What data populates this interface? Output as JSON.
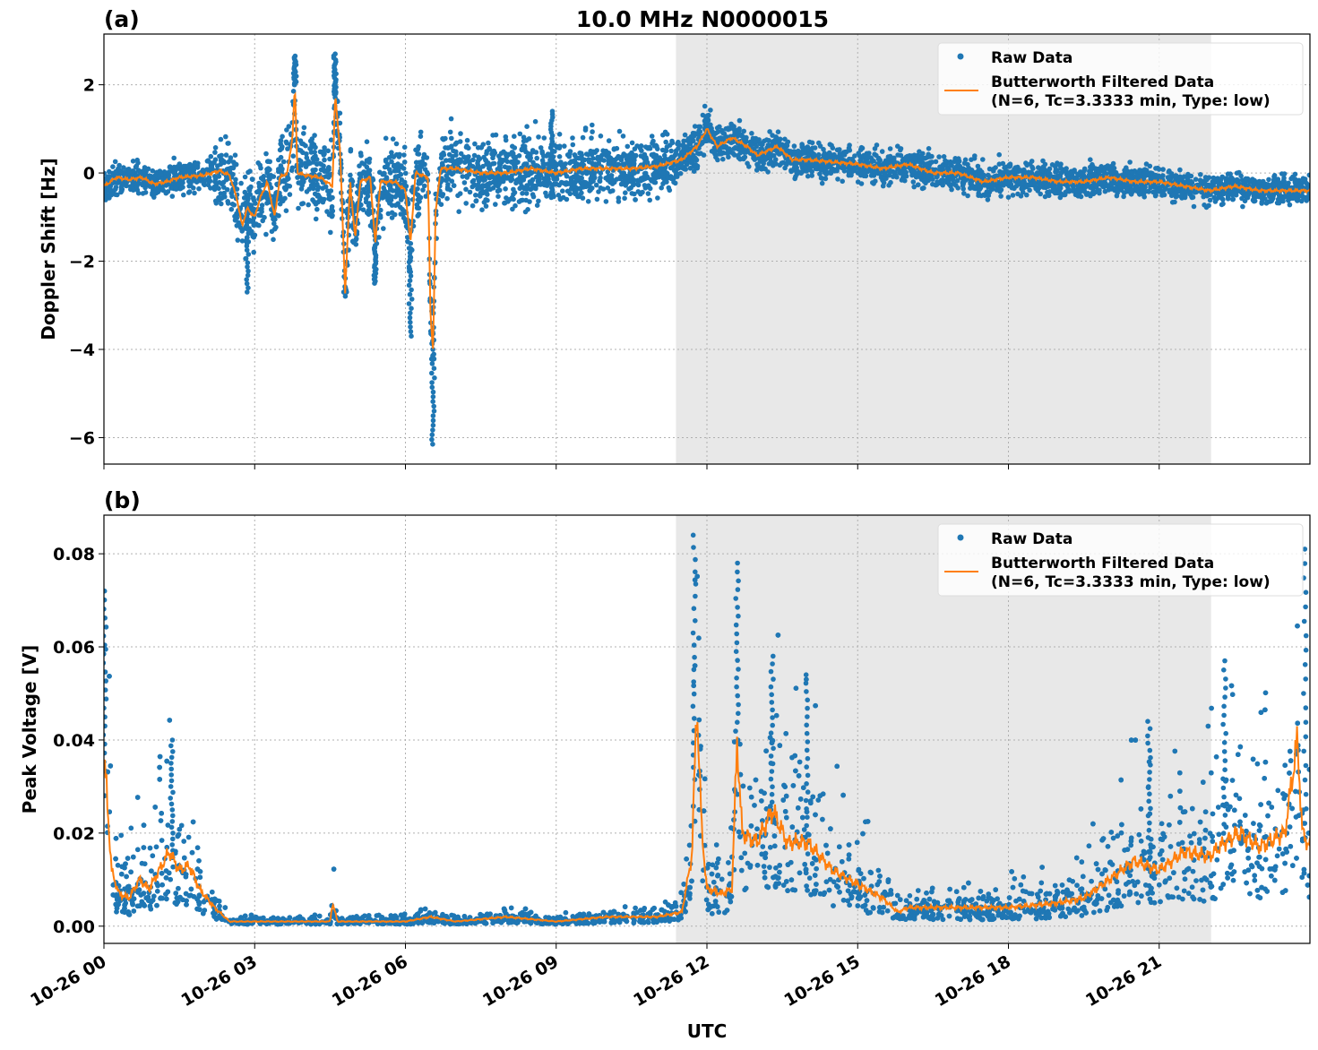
{
  "title": "10.0 MHz N0000015",
  "xlabel": "UTC",
  "x_tick_labels": [
    "10-26 00",
    "10-26 03",
    "10-26 06",
    "10-26 09",
    "10-26 12",
    "10-26 15",
    "10-26 18",
    "10-26 21"
  ],
  "xlim": [
    "00:00",
    "24:00"
  ],
  "shaded_span": [
    "11:23",
    "22:02"
  ],
  "colors": {
    "raw": "#1f77b4",
    "filtered": "#ff7f0e",
    "shade": "#e8e8e8",
    "grid": "#b0b0b0"
  },
  "legend": {
    "placement": "top-right",
    "raw_label": "Raw Data",
    "filtered_label_1": "Butterworth Filtered Data",
    "filtered_label_2": "(N=6, Tc=3.3333 min, Type: low)"
  },
  "chart_data": [
    {
      "type": "scatter+line",
      "panel_label": "(a)",
      "ylabel": "Doppler Shift [Hz]",
      "ylim": [
        -6.6,
        3.15
      ],
      "y_ticks": [
        2,
        0,
        -2,
        -4,
        -6
      ],
      "y_tick_labels": [
        "2",
        "0",
        "−2",
        "−4",
        "−6"
      ],
      "grid": true,
      "filtered": [
        [
          "00:00",
          -0.3
        ],
        [
          "00:15",
          -0.1
        ],
        [
          "00:30",
          -0.15
        ],
        [
          "00:45",
          -0.1
        ],
        [
          "01:00",
          -0.25
        ],
        [
          "01:15",
          -0.2
        ],
        [
          "01:30",
          -0.1
        ],
        [
          "02:00",
          -0.05
        ],
        [
          "02:18",
          0.05
        ],
        [
          "02:30",
          -0.05
        ],
        [
          "02:39",
          -0.6
        ],
        [
          "02:45",
          -1.2
        ],
        [
          "02:51",
          -0.8
        ],
        [
          "03:00",
          -1.0
        ],
        [
          "03:06",
          -0.6
        ],
        [
          "03:15",
          -0.2
        ],
        [
          "03:24",
          -1.0
        ],
        [
          "03:30",
          -0.1
        ],
        [
          "03:39",
          0.0
        ],
        [
          "03:45",
          0.8
        ],
        [
          "03:48",
          2.0
        ],
        [
          "03:51",
          0.0
        ],
        [
          "04:00",
          -0.05
        ],
        [
          "04:18",
          -0.1
        ],
        [
          "04:33",
          -0.3
        ],
        [
          "04:36",
          1.8
        ],
        [
          "04:42",
          0.5
        ],
        [
          "04:48",
          -2.7
        ],
        [
          "04:54",
          -0.2
        ],
        [
          "05:00",
          -1.5
        ],
        [
          "05:06",
          -0.2
        ],
        [
          "05:18",
          -0.1
        ],
        [
          "05:24",
          -1.6
        ],
        [
          "05:30",
          -0.2
        ],
        [
          "05:48",
          -0.2
        ],
        [
          "06:00",
          -0.4
        ],
        [
          "06:06",
          -1.6
        ],
        [
          "06:12",
          0.0
        ],
        [
          "06:27",
          -0.1
        ],
        [
          "06:30",
          -3.3
        ],
        [
          "06:33",
          -4.0
        ],
        [
          "06:36",
          -0.9
        ],
        [
          "06:42",
          0.1
        ],
        [
          "07:00",
          0.1
        ],
        [
          "07:30",
          0.0
        ],
        [
          "08:00",
          0.0
        ],
        [
          "08:30",
          0.1
        ],
        [
          "09:00",
          0.0
        ],
        [
          "09:30",
          0.1
        ],
        [
          "10:00",
          0.1
        ],
        [
          "10:30",
          0.1
        ],
        [
          "11:00",
          0.15
        ],
        [
          "11:30",
          0.3
        ],
        [
          "11:48",
          0.6
        ],
        [
          "12:00",
          1.0
        ],
        [
          "12:12",
          0.6
        ],
        [
          "12:30",
          0.8
        ],
        [
          "12:48",
          0.6
        ],
        [
          "13:00",
          0.4
        ],
        [
          "13:24",
          0.6
        ],
        [
          "13:42",
          0.3
        ],
        [
          "14:00",
          0.3
        ],
        [
          "15:00",
          0.2
        ],
        [
          "15:30",
          0.1
        ],
        [
          "16:00",
          0.2
        ],
        [
          "16:30",
          0.0
        ],
        [
          "17:00",
          0.0
        ],
        [
          "17:30",
          -0.2
        ],
        [
          "18:00",
          -0.1
        ],
        [
          "18:30",
          -0.1
        ],
        [
          "19:00",
          -0.2
        ],
        [
          "19:30",
          -0.2
        ],
        [
          "20:00",
          -0.1
        ],
        [
          "20:30",
          -0.2
        ],
        [
          "21:00",
          -0.2
        ],
        [
          "21:30",
          -0.3
        ],
        [
          "22:00",
          -0.4
        ],
        [
          "22:30",
          -0.3
        ],
        [
          "23:00",
          -0.4
        ],
        [
          "23:30",
          -0.4
        ],
        [
          "24:00",
          -0.4
        ]
      ],
      "raw_spread": [
        [
          "00:00",
          0.3
        ],
        [
          "02:00",
          0.3
        ],
        [
          "02:30",
          0.8
        ],
        [
          "07:00",
          0.7
        ],
        [
          "11:00",
          0.6
        ],
        [
          "11:30",
          0.4
        ],
        [
          "13:00",
          0.35
        ],
        [
          "24:00",
          0.3
        ]
      ],
      "raw_extremes": [
        [
          "03:48",
          2.65
        ],
        [
          "04:36",
          2.7
        ],
        [
          "06:33",
          -6.15
        ],
        [
          "02:51",
          -2.7
        ],
        [
          "04:48",
          -2.7
        ],
        [
          "05:24",
          -2.5
        ],
        [
          "06:06",
          -3.7
        ],
        [
          "12:00",
          1.3
        ],
        [
          "08:54",
          1.4
        ]
      ]
    },
    {
      "type": "scatter+line",
      "panel_label": "(b)",
      "ylabel": "Peak Voltage [V]",
      "ylim": [
        -0.0037,
        0.0883
      ],
      "y_ticks": [
        0.0,
        0.02,
        0.04,
        0.06,
        0.08
      ],
      "y_tick_labels": [
        "0.00",
        "0.02",
        "0.04",
        "0.06",
        "0.08"
      ],
      "grid": true,
      "filtered": [
        [
          "00:00",
          0.035
        ],
        [
          "00:03",
          0.03
        ],
        [
          "00:09",
          0.012
        ],
        [
          "00:18",
          0.007
        ],
        [
          "00:30",
          0.006
        ],
        [
          "00:42",
          0.01
        ],
        [
          "00:54",
          0.008
        ],
        [
          "01:06",
          0.012
        ],
        [
          "01:18",
          0.016
        ],
        [
          "01:30",
          0.012
        ],
        [
          "01:42",
          0.013
        ],
        [
          "01:54",
          0.008
        ],
        [
          "02:12",
          0.004
        ],
        [
          "02:30",
          0.001
        ],
        [
          "03:00",
          0.001
        ],
        [
          "04:00",
          0.001
        ],
        [
          "04:30",
          0.001
        ],
        [
          "04:33",
          0.005
        ],
        [
          "04:39",
          0.001
        ],
        [
          "05:00",
          0.001
        ],
        [
          "06:00",
          0.001
        ],
        [
          "06:30",
          0.002
        ],
        [
          "07:00",
          0.001
        ],
        [
          "08:00",
          0.002
        ],
        [
          "09:00",
          0.001
        ],
        [
          "10:00",
          0.002
        ],
        [
          "11:00",
          0.002
        ],
        [
          "11:30",
          0.003
        ],
        [
          "11:42",
          0.015
        ],
        [
          "11:48",
          0.048
        ],
        [
          "11:54",
          0.02
        ],
        [
          "12:00",
          0.008
        ],
        [
          "12:18",
          0.007
        ],
        [
          "12:30",
          0.008
        ],
        [
          "12:36",
          0.04
        ],
        [
          "12:42",
          0.02
        ],
        [
          "13:00",
          0.018
        ],
        [
          "13:18",
          0.025
        ],
        [
          "13:36",
          0.018
        ],
        [
          "14:00",
          0.018
        ],
        [
          "14:30",
          0.012
        ],
        [
          "15:00",
          0.009
        ],
        [
          "15:30",
          0.006
        ],
        [
          "15:48",
          0.003
        ],
        [
          "16:00",
          0.004
        ],
        [
          "17:00",
          0.004
        ],
        [
          "18:00",
          0.004
        ],
        [
          "19:00",
          0.005
        ],
        [
          "19:30",
          0.006
        ],
        [
          "20:00",
          0.01
        ],
        [
          "20:30",
          0.014
        ],
        [
          "21:00",
          0.012
        ],
        [
          "21:30",
          0.016
        ],
        [
          "22:00",
          0.015
        ],
        [
          "22:18",
          0.018
        ],
        [
          "22:36",
          0.02
        ],
        [
          "23:00",
          0.017
        ],
        [
          "23:30",
          0.02
        ],
        [
          "23:45",
          0.04
        ],
        [
          "23:51",
          0.02
        ],
        [
          "24:00",
          0.017
        ]
      ],
      "raw_extremes": [
        [
          "00:01",
          0.072
        ],
        [
          "01:21",
          0.04
        ],
        [
          "11:45",
          0.084
        ],
        [
          "12:36",
          0.078
        ],
        [
          "13:18",
          0.058
        ],
        [
          "14:00",
          0.054
        ],
        [
          "20:48",
          0.044
        ],
        [
          "22:18",
          0.057
        ],
        [
          "23:54",
          0.081
        ]
      ]
    }
  ]
}
